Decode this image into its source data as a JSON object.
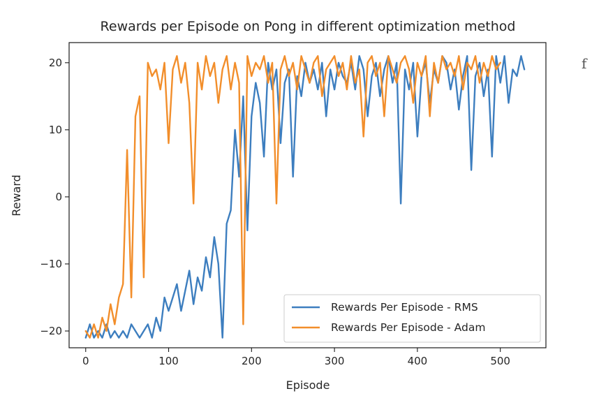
{
  "edge_glyph": "f",
  "chart_data": {
    "type": "line",
    "title": "Rewards per Episode on Pong in different optimization method",
    "xlabel": "Episode",
    "ylabel": "Reward",
    "xlim": [
      -20,
      555
    ],
    "ylim": [
      -22.5,
      23
    ],
    "x_ticks": [
      0,
      100,
      200,
      300,
      400,
      500
    ],
    "y_ticks": [
      -20,
      -10,
      0,
      10,
      20
    ],
    "x_tick_labels": [
      "0",
      "100",
      "200",
      "300",
      "400",
      "500"
    ],
    "y_tick_labels": [
      "−20",
      "−10",
      "0",
      "10",
      "20"
    ],
    "grid": false,
    "legend_position": "lower-right",
    "series": [
      {
        "name": "Rewards Per Episode - RMS",
        "color": "#3d7ebf",
        "x": [
          0,
          5,
          10,
          15,
          20,
          25,
          30,
          35,
          40,
          45,
          50,
          55,
          60,
          65,
          70,
          75,
          80,
          85,
          90,
          95,
          100,
          105,
          110,
          115,
          120,
          125,
          130,
          135,
          140,
          145,
          150,
          155,
          160,
          165,
          170,
          175,
          180,
          185,
          190,
          195,
          200,
          205,
          210,
          215,
          220,
          225,
          230,
          235,
          240,
          245,
          250,
          255,
          260,
          265,
          270,
          275,
          280,
          285,
          290,
          295,
          300,
          305,
          310,
          315,
          320,
          325,
          330,
          335,
          340,
          345,
          350,
          355,
          360,
          365,
          370,
          375,
          380,
          385,
          390,
          395,
          400,
          405,
          410,
          415,
          420,
          425,
          430,
          435,
          440,
          445,
          450,
          455,
          460,
          465,
          470,
          475,
          480,
          485,
          490,
          495,
          500,
          505,
          510,
          515,
          520,
          525,
          529
        ],
        "y": [
          -21,
          -19,
          -21,
          -20,
          -21,
          -19,
          -21,
          -20,
          -21,
          -20,
          -21,
          -19,
          -20,
          -21,
          -20,
          -19,
          -21,
          -18,
          -20,
          -15,
          -17,
          -15,
          -13,
          -17,
          -14,
          -11,
          -16,
          -12,
          -14,
          -9,
          -12,
          -6,
          -10,
          -21,
          -4,
          -2,
          10,
          3,
          15,
          -5,
          12,
          17,
          14,
          6,
          20,
          16,
          19,
          8,
          17,
          19,
          3,
          18,
          15,
          20,
          17,
          19,
          16,
          20,
          12,
          19,
          16,
          20,
          18,
          17,
          20,
          16,
          21,
          19,
          12,
          18,
          20,
          15,
          19,
          21,
          17,
          20,
          -1,
          19,
          16,
          20,
          9,
          18,
          20,
          14,
          19,
          17,
          21,
          20,
          16,
          19,
          13,
          18,
          21,
          4,
          18,
          20,
          15,
          19,
          6,
          21,
          17,
          21,
          14,
          19,
          18,
          21,
          19
        ]
      },
      {
        "name": "Rewards Per Episode - Adam",
        "color": "#f28e2b",
        "x": [
          0,
          5,
          10,
          15,
          20,
          25,
          30,
          35,
          40,
          45,
          50,
          55,
          60,
          65,
          70,
          75,
          80,
          85,
          90,
          95,
          100,
          105,
          110,
          115,
          120,
          125,
          130,
          135,
          140,
          145,
          150,
          155,
          160,
          165,
          170,
          175,
          180,
          185,
          190,
          195,
          200,
          205,
          210,
          215,
          220,
          225,
          230,
          235,
          240,
          245,
          250,
          255,
          260,
          265,
          270,
          275,
          280,
          285,
          290,
          295,
          300,
          305,
          310,
          315,
          320,
          325,
          330,
          335,
          340,
          345,
          350,
          355,
          360,
          365,
          370,
          375,
          380,
          385,
          390,
          395,
          400,
          405,
          410,
          415,
          420,
          425,
          430,
          435,
          440,
          445,
          450,
          455,
          460,
          465,
          470,
          475,
          480,
          485,
          490,
          495,
          500
        ],
        "y": [
          -20,
          -21,
          -19,
          -21,
          -18,
          -20,
          -16,
          -19,
          -15,
          -13,
          7,
          -15,
          12,
          15,
          -12,
          20,
          18,
          19,
          16,
          20,
          8,
          19,
          21,
          17,
          20,
          14,
          -1,
          20,
          16,
          21,
          18,
          20,
          14,
          19,
          21,
          16,
          20,
          17,
          -19,
          21,
          18,
          20,
          19,
          21,
          17,
          20,
          -1,
          19,
          21,
          18,
          20,
          16,
          21,
          19,
          17,
          20,
          21,
          15,
          19,
          20,
          21,
          18,
          20,
          16,
          21,
          17,
          19,
          9,
          20,
          21,
          18,
          20,
          12,
          21,
          19,
          17,
          20,
          21,
          19,
          14,
          20,
          18,
          21,
          12,
          20,
          17,
          21,
          19,
          20,
          18,
          21,
          16,
          20,
          19,
          21,
          17,
          20,
          18,
          21,
          19,
          20
        ]
      }
    ]
  }
}
